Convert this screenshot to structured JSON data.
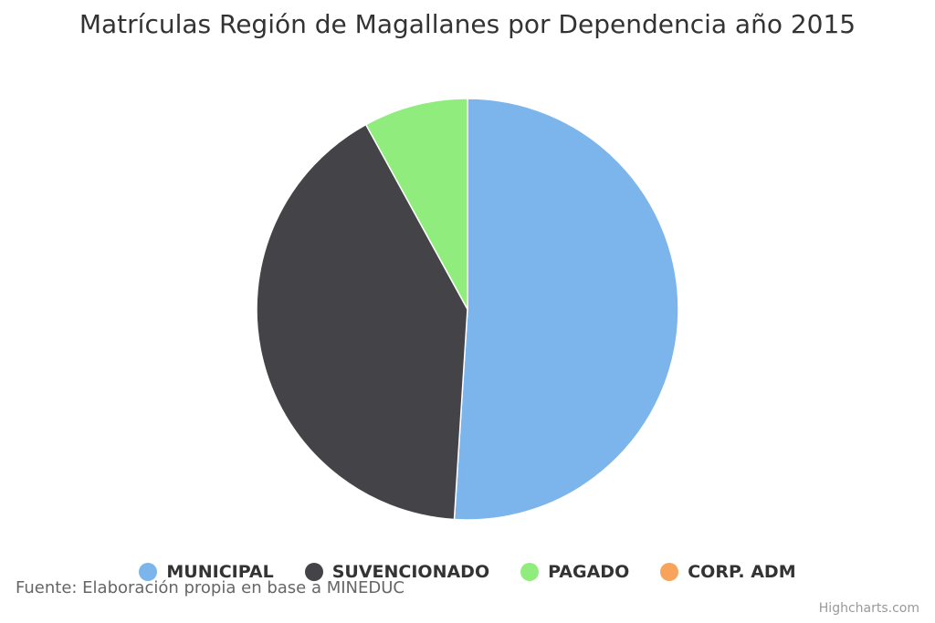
{
  "chart_data": {
    "type": "pie",
    "title": "Matrículas Región de Magallanes por Dependencia año 2015",
    "legend_position": "bottom",
    "series": [
      {
        "name": "MUNICIPAL",
        "value": 51.0,
        "color": "#7cb5ec"
      },
      {
        "name": "SUVENCIONADO",
        "value": 41.0,
        "color": "#434348"
      },
      {
        "name": "PAGADO",
        "value": 8.0,
        "color": "#90ed7d"
      },
      {
        "name": "CORP. ADM",
        "value": 0.0,
        "color": "#f7a35c"
      }
    ]
  },
  "credits": {
    "source": "Fuente: Elaboración propia en base a MINEDUC",
    "highcharts": "Highcharts.com"
  }
}
